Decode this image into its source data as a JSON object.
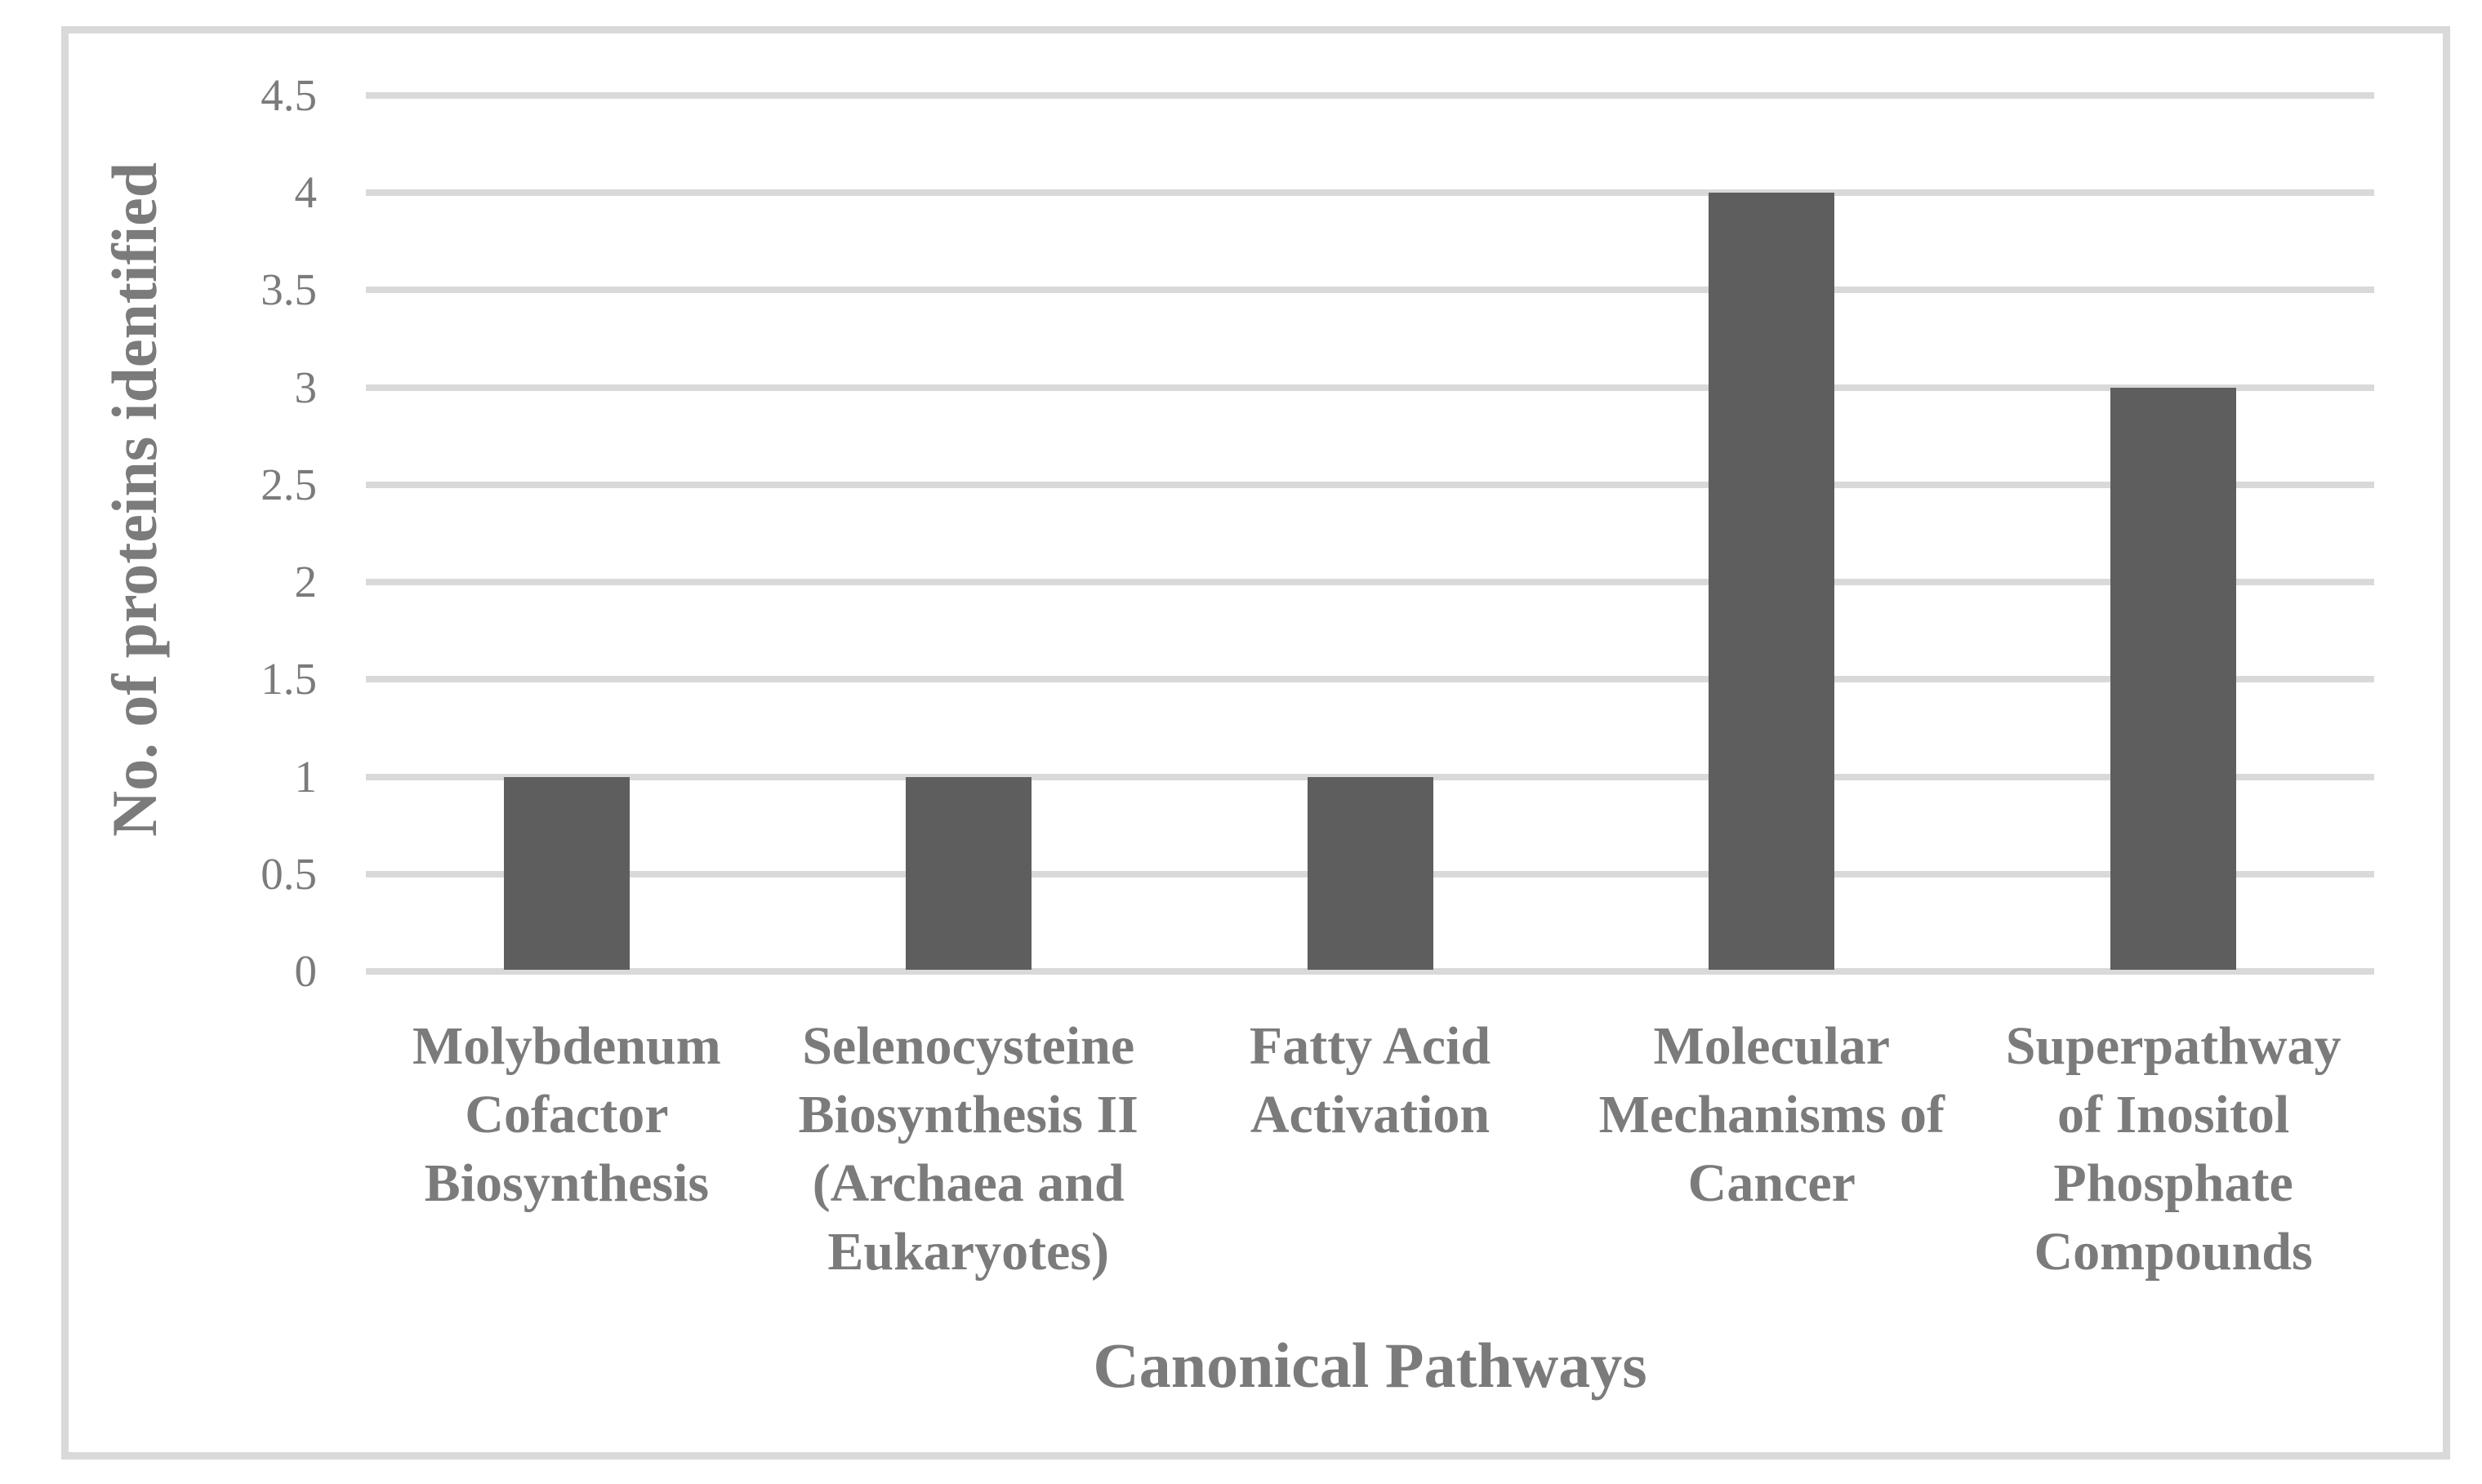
{
  "chart_data": {
    "type": "bar",
    "title": "",
    "xlabel": "Canonical Pathways",
    "ylabel": "No. of proteins identified",
    "categories": [
      {
        "label": "Molybdenum Cofactor Biosynthesis",
        "lines": [
          "Molybdenum",
          "Cofactor",
          "Biosynthesis"
        ]
      },
      {
        "label": "Selenocysteine Biosynthesis II (Archaea and Eukaryotes)",
        "lines": [
          "Selenocysteine",
          "Biosynthesis II",
          "(Archaea and",
          "Eukaryotes)"
        ]
      },
      {
        "label": "Fatty Acid Activation",
        "lines": [
          "Fatty Acid",
          "Activation"
        ]
      },
      {
        "label": "Molecular Mechanisms of Cancer",
        "lines": [
          "Molecular",
          "Mechanisms of",
          "Cancer"
        ]
      },
      {
        "label": "Superpathway of Inositol Phosphate Compounds",
        "lines": [
          "Superpathway",
          "of Inositol",
          "Phosphate",
          "Compounds"
        ]
      }
    ],
    "values": [
      1,
      1,
      1,
      4,
      3
    ],
    "ylim": [
      0,
      4.5
    ],
    "yticks": [
      {
        "value": 0,
        "label": "0"
      },
      {
        "value": 0.5,
        "label": "0.5"
      },
      {
        "value": 1,
        "label": "1"
      },
      {
        "value": 1.5,
        "label": "1.5"
      },
      {
        "value": 2,
        "label": "2"
      },
      {
        "value": 2.5,
        "label": "2.5"
      },
      {
        "value": 3,
        "label": "3"
      },
      {
        "value": 3.5,
        "label": "3.5"
      },
      {
        "value": 4,
        "label": "4"
      },
      {
        "value": 4.5,
        "label": "4.5"
      }
    ],
    "grid": "horizontal",
    "legend_position": "none",
    "bar_color": "#5e5e5e",
    "gridline_color": "#d9d9d9",
    "frame_border_color": "#d9d9d9",
    "text_color": "#7b7b7b",
    "background_color": "#ffffff"
  }
}
